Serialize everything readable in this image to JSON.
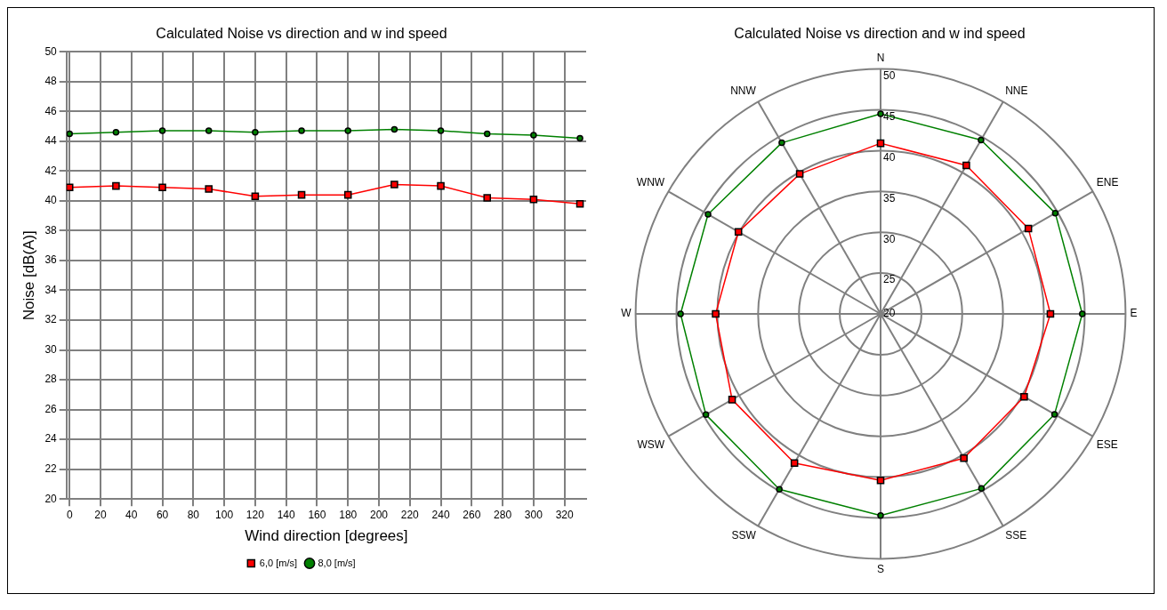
{
  "chart_data": [
    {
      "type": "line",
      "title": "Calculated Noise vs direction and w ind speed",
      "xlabel": "Wind direction [degrees]",
      "ylabel": "Noise [dB(A)]",
      "x": [
        0,
        30,
        60,
        90,
        120,
        150,
        180,
        210,
        240,
        270,
        300,
        330
      ],
      "xlim": [
        -2,
        334
      ],
      "xticks": [
        0,
        20,
        40,
        60,
        80,
        100,
        120,
        140,
        160,
        180,
        200,
        220,
        240,
        260,
        280,
        300,
        320
      ],
      "ylim": [
        20,
        50
      ],
      "yticks": [
        20,
        22,
        24,
        26,
        28,
        30,
        32,
        34,
        36,
        38,
        40,
        42,
        44,
        46,
        48,
        50
      ],
      "grid": true,
      "legend": "bottom",
      "line_style": "solid",
      "series": [
        {
          "name": "6,0 [m/s]",
          "color": "#ff0000",
          "marker": "square",
          "values": [
            40.9,
            41.0,
            40.9,
            40.8,
            40.3,
            40.4,
            40.4,
            41.1,
            41.0,
            40.2,
            40.1,
            39.8
          ]
        },
        {
          "name": "8,0 [m/s]",
          "color": "#008000",
          "marker": "circle",
          "values": [
            44.5,
            44.6,
            44.7,
            44.7,
            44.6,
            44.7,
            44.7,
            44.8,
            44.7,
            44.5,
            44.4,
            44.2
          ]
        }
      ]
    },
    {
      "type": "radar",
      "title": "Calculated Noise vs direction and w ind speed",
      "categories": [
        "N",
        "NNE",
        "ENE",
        "E",
        "ESE",
        "SSE",
        "S",
        "SSW",
        "WSW",
        "W",
        "WNW",
        "NNW"
      ],
      "ylim": [
        20,
        50
      ],
      "yticks": [
        20,
        25,
        30,
        35,
        40,
        45,
        50
      ],
      "grid": true,
      "series": [
        {
          "color": "#ff0000",
          "marker": "square",
          "values": [
            40.9,
            41.0,
            40.9,
            40.8,
            40.3,
            40.4,
            40.4,
            41.1,
            41.0,
            40.2,
            40.1,
            39.8
          ]
        },
        {
          "color": "#008000",
          "marker": "circle",
          "values": [
            44.5,
            44.6,
            44.7,
            44.7,
            44.6,
            44.7,
            44.7,
            44.8,
            44.7,
            44.5,
            44.4,
            44.2
          ]
        }
      ]
    }
  ]
}
